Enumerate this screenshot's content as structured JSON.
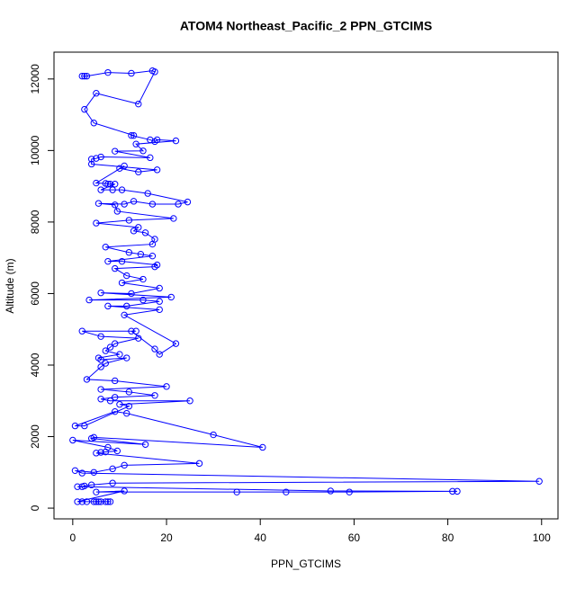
{
  "chart_data": {
    "type": "line",
    "title": "ATOM4 Northeast_Pacific_2 PPN_GTCIMS",
    "x_label": "PPN_GTCIMS",
    "y_label": "Altitude (m)",
    "x": [
      2,
      2.5,
      3,
      7.5,
      12.5,
      17,
      17.5,
      14,
      5,
      2.5,
      4.5,
      13,
      12.5,
      16.5,
      17.5,
      18,
      22,
      13.5,
      15,
      9,
      16.5,
      6,
      5,
      4,
      4,
      18,
      14,
      10,
      11,
      5,
      7,
      7.5,
      8,
      9,
      6,
      8.5,
      10.5,
      16,
      24.5,
      22.5,
      17,
      13,
      11,
      5.5,
      9,
      9.5,
      21.5,
      12,
      5,
      14,
      13,
      15.5,
      17.5,
      17,
      7,
      12,
      14.5,
      17,
      7.5,
      10.5,
      18,
      17.5,
      9,
      11.5,
      15,
      10.5,
      18.5,
      12.5,
      6,
      21,
      3.5,
      15,
      18.5,
      11.5,
      7.5,
      18.5,
      11,
      22,
      18.5,
      17.5,
      12.5,
      13.5,
      2,
      6,
      14,
      9,
      8,
      7,
      10,
      5.5,
      6,
      11.5,
      7,
      6,
      3,
      9,
      20,
      6,
      12,
      17.5,
      9,
      6,
      8,
      25,
      10,
      12,
      2.5,
      0.5,
      9,
      11.5,
      30,
      40.5,
      4.5,
      4,
      15.5,
      0,
      7.5,
      9.5,
      7,
      6,
      5,
      27,
      11,
      8.5,
      4.5,
      0.5,
      2,
      99.5,
      8.5,
      4,
      2.5,
      2,
      1,
      55,
      82,
      81,
      59,
      45.5,
      35,
      5,
      11,
      1,
      2,
      3,
      4.5,
      5,
      5.5,
      6,
      7,
      7.5,
      8
    ],
    "series": [
      {
        "name": "PPN_GTCIMS",
        "color": "#0000ff",
        "values": [
          12080,
          12080,
          12080,
          12180,
          12160,
          12230,
          12200,
          11300,
          11600,
          11150,
          10770,
          10420,
          10420,
          10300,
          10250,
          10300,
          10270,
          10180,
          9990,
          9980,
          9800,
          9820,
          9780,
          9760,
          9620,
          9460,
          9400,
          9500,
          9570,
          9090,
          9080,
          9060,
          9060,
          9060,
          8900,
          8900,
          8900,
          8800,
          8560,
          8500,
          8500,
          8580,
          8500,
          8520,
          8480,
          8300,
          8100,
          8050,
          7970,
          7850,
          7750,
          7700,
          7520,
          7380,
          7300,
          7150,
          7100,
          7050,
          6900,
          6900,
          6800,
          6750,
          6700,
          6500,
          6400,
          6300,
          6150,
          6000,
          6020,
          5900,
          5820,
          5820,
          5780,
          5650,
          5650,
          5550,
          5400,
          4600,
          4300,
          4450,
          4950,
          4950,
          4950,
          4800,
          4750,
          4600,
          4500,
          4400,
          4300,
          4200,
          4150,
          4200,
          4050,
          3950,
          3600,
          3560,
          3400,
          3320,
          3250,
          3150,
          3100,
          3050,
          3000,
          3000,
          2900,
          2850,
          2300,
          2300,
          2700,
          2650,
          2050,
          1700,
          1980,
          1950,
          1780,
          1900,
          1700,
          1600,
          1570,
          1560,
          1540,
          1250,
          1200,
          1100,
          1000,
          1050,
          980,
          750,
          700,
          650,
          620,
          600,
          600,
          480,
          470,
          470,
          450,
          450,
          450,
          450,
          480,
          180,
          180,
          180,
          180,
          180,
          180,
          180,
          180,
          180,
          180
        ]
      }
    ],
    "xlim": [
      -4,
      103.5
    ],
    "ylim": [
      -300,
      12750
    ],
    "xticks": [
      0,
      20,
      40,
      60,
      80,
      100
    ],
    "yticks": [
      0,
      2000,
      4000,
      6000,
      8000,
      10000,
      12000
    ]
  }
}
